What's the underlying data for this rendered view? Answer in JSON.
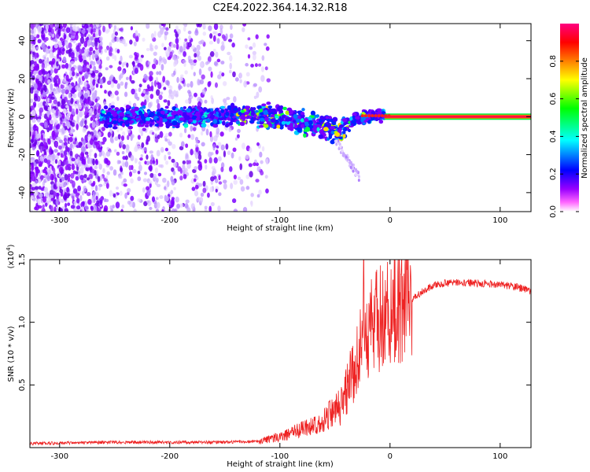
{
  "title": "C2E4.2022.364.14.32.R18",
  "chart_data": [
    {
      "type": "heatmap",
      "xlabel": "Height of straight line (km)",
      "ylabel": "Frequency (Hz)",
      "xlim": [
        -327,
        128
      ],
      "ylim": [
        -50,
        49
      ],
      "xticks": [
        -300,
        -200,
        -100,
        0,
        100
      ],
      "yticks": [
        40,
        20,
        0,
        -20,
        -40
      ],
      "colorbar": {
        "label": "Normalized spectral amplitude",
        "range": [
          0,
          1
        ],
        "ticks": [
          "0.0",
          "0.2",
          "0.4",
          "0.6",
          "0.8"
        ],
        "colors": [
          "#ffffff",
          "#ff00ff",
          "#8000ff",
          "#0000ff",
          "#00ffff",
          "#00ff00",
          "#ffff00",
          "#ff8000",
          "#ff0000",
          "#ff0080"
        ]
      },
      "features": {
        "scatter_noise_x_range": [
          -327,
          -120
        ],
        "dense_noise_x_range": [
          -327,
          -262
        ],
        "signal_band": [
          {
            "x": -262,
            "y": 0
          },
          {
            "x": -200,
            "y": 0
          },
          {
            "x": -140,
            "y": 1
          },
          {
            "x": -110,
            "y": 0
          },
          {
            "x": -90,
            "y": -2
          },
          {
            "x": -60,
            "y": -5
          },
          {
            "x": -45,
            "y": -8
          },
          {
            "x": -35,
            "y": -2
          },
          {
            "x": -20,
            "y": 0
          },
          {
            "x": 0,
            "y": 1
          },
          {
            "x": 128,
            "y": 0
          }
        ],
        "steady_tone_x_range": [
          -5,
          128
        ]
      }
    },
    {
      "type": "line",
      "xlabel": "Height of straight line (km)",
      "ylabel": "SNR (10 * v/v)",
      "yscale_label": "(x10",
      "yscale_exp": "4",
      "yscale_close": ")",
      "xlim": [
        -327,
        128
      ],
      "ylim": [
        0,
        1.5
      ],
      "xticks": [
        -300,
        -200,
        -100,
        0,
        100
      ],
      "yticks": [
        "0.5",
        "1.0",
        "1.5"
      ],
      "color": "#ee2222",
      "envelope": [
        {
          "x": -327,
          "y": 0.02
        },
        {
          "x": -250,
          "y": 0.03
        },
        {
          "x": -200,
          "y": 0.03
        },
        {
          "x": -150,
          "y": 0.03
        },
        {
          "x": -120,
          "y": 0.04
        },
        {
          "x": -100,
          "y": 0.07
        },
        {
          "x": -80,
          "y": 0.12
        },
        {
          "x": -60,
          "y": 0.18
        },
        {
          "x": -45,
          "y": 0.3
        },
        {
          "x": -35,
          "y": 0.55
        },
        {
          "x": -25,
          "y": 0.8
        },
        {
          "x": -15,
          "y": 0.95
        },
        {
          "x": -5,
          "y": 1.0
        },
        {
          "x": 5,
          "y": 1.08
        },
        {
          "x": 15,
          "y": 1.15
        },
        {
          "x": 25,
          "y": 1.22
        },
        {
          "x": 40,
          "y": 1.3
        },
        {
          "x": 60,
          "y": 1.32
        },
        {
          "x": 80,
          "y": 1.31
        },
        {
          "x": 100,
          "y": 1.3
        },
        {
          "x": 115,
          "y": 1.28
        },
        {
          "x": 128,
          "y": 1.25
        }
      ],
      "spike": {
        "x": -24,
        "y": 1.5
      }
    }
  ]
}
